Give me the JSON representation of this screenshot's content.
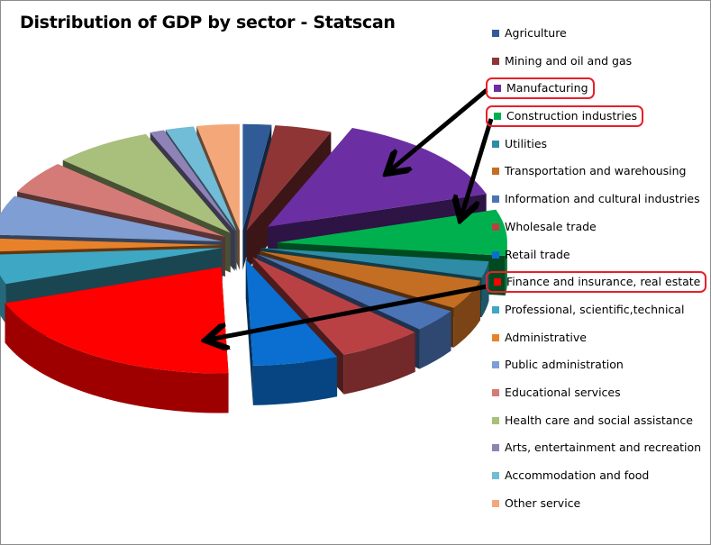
{
  "chart_data": {
    "type": "pie",
    "style": "3d-exploded",
    "title": "Distribution of GDP by sector - Statscan",
    "legend_position": "right",
    "categories": [
      "Agriculture",
      "Mining and oil and gas",
      "Manufacturing",
      "Construction industries",
      "Utilities",
      "Transportation and warehousing",
      "Information and cultural industries",
      "Wholesale trade",
      "Retail trade",
      "Finance and insurance, real estate",
      "Professional, scientific,technical",
      "Administrative",
      "Public administration",
      "Educational services",
      "Health care and social assistance",
      "Arts, entertainment and recreation",
      "Accommodation and food",
      "Other service"
    ],
    "values": [
      2,
      4,
      14,
      7,
      2.5,
      4.5,
      3.5,
      6,
      6,
      20,
      4.5,
      2,
      6,
      5,
      7,
      1,
      2,
      3
    ],
    "colors": [
      "#305b97",
      "#8f3535",
      "#6b2fa3",
      "#00b04f",
      "#2e8ca6",
      "#c46e24",
      "#4b74b6",
      "#b94144",
      "#0a6fd0",
      "#ff0000",
      "#3ea7c3",
      "#e8822a",
      "#7e9ed4",
      "#d47b78",
      "#a8c07b",
      "#8f82b7",
      "#71bcd6",
      "#f4a87a"
    ],
    "highlighted": [
      "Manufacturing",
      "Construction industries",
      "Finance and insurance, real estate"
    ]
  }
}
